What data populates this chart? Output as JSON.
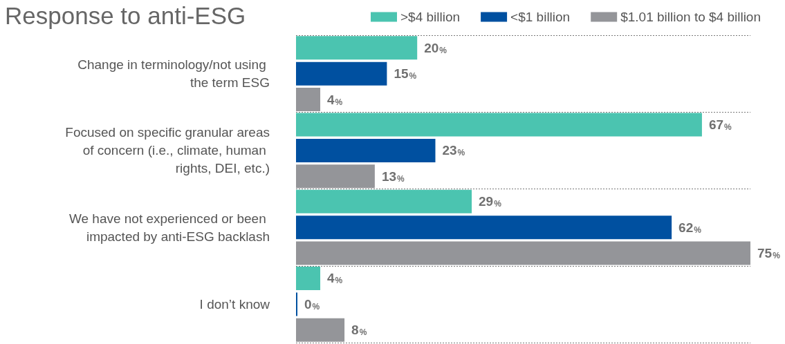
{
  "chart_data": {
    "type": "bar",
    "orientation": "horizontal",
    "title": "Response to anti-ESG",
    "categories": [
      "Change in terminology/not using the term ESG",
      "Focused on specific granular areas of concern (i.e., climate, human rights, DEI, etc.)",
      "We have not experienced or been impacted by anti-ESG backlash",
      "I don’t know"
    ],
    "series": [
      {
        "name": ">$4 billion",
        "color": "#4bc4b0",
        "values": [
          20,
          67,
          29,
          4
        ],
        "value_labels": [
          "20%",
          "67%",
          "29%",
          "4%"
        ]
      },
      {
        "name": "<$1 billion",
        "color": "#0050a0",
        "values": [
          15,
          23,
          62,
          0
        ],
        "value_labels": [
          "15%",
          "23%",
          "62%",
          "0%"
        ]
      },
      {
        "name": "$1.01 billion to $4 billion",
        "color": "#949599",
        "values": [
          4,
          13,
          75,
          8
        ],
        "value_labels": [
          "4%",
          "13%",
          "75%",
          "8%"
        ]
      }
    ],
    "grid": "y",
    "legend": "top right"
  }
}
